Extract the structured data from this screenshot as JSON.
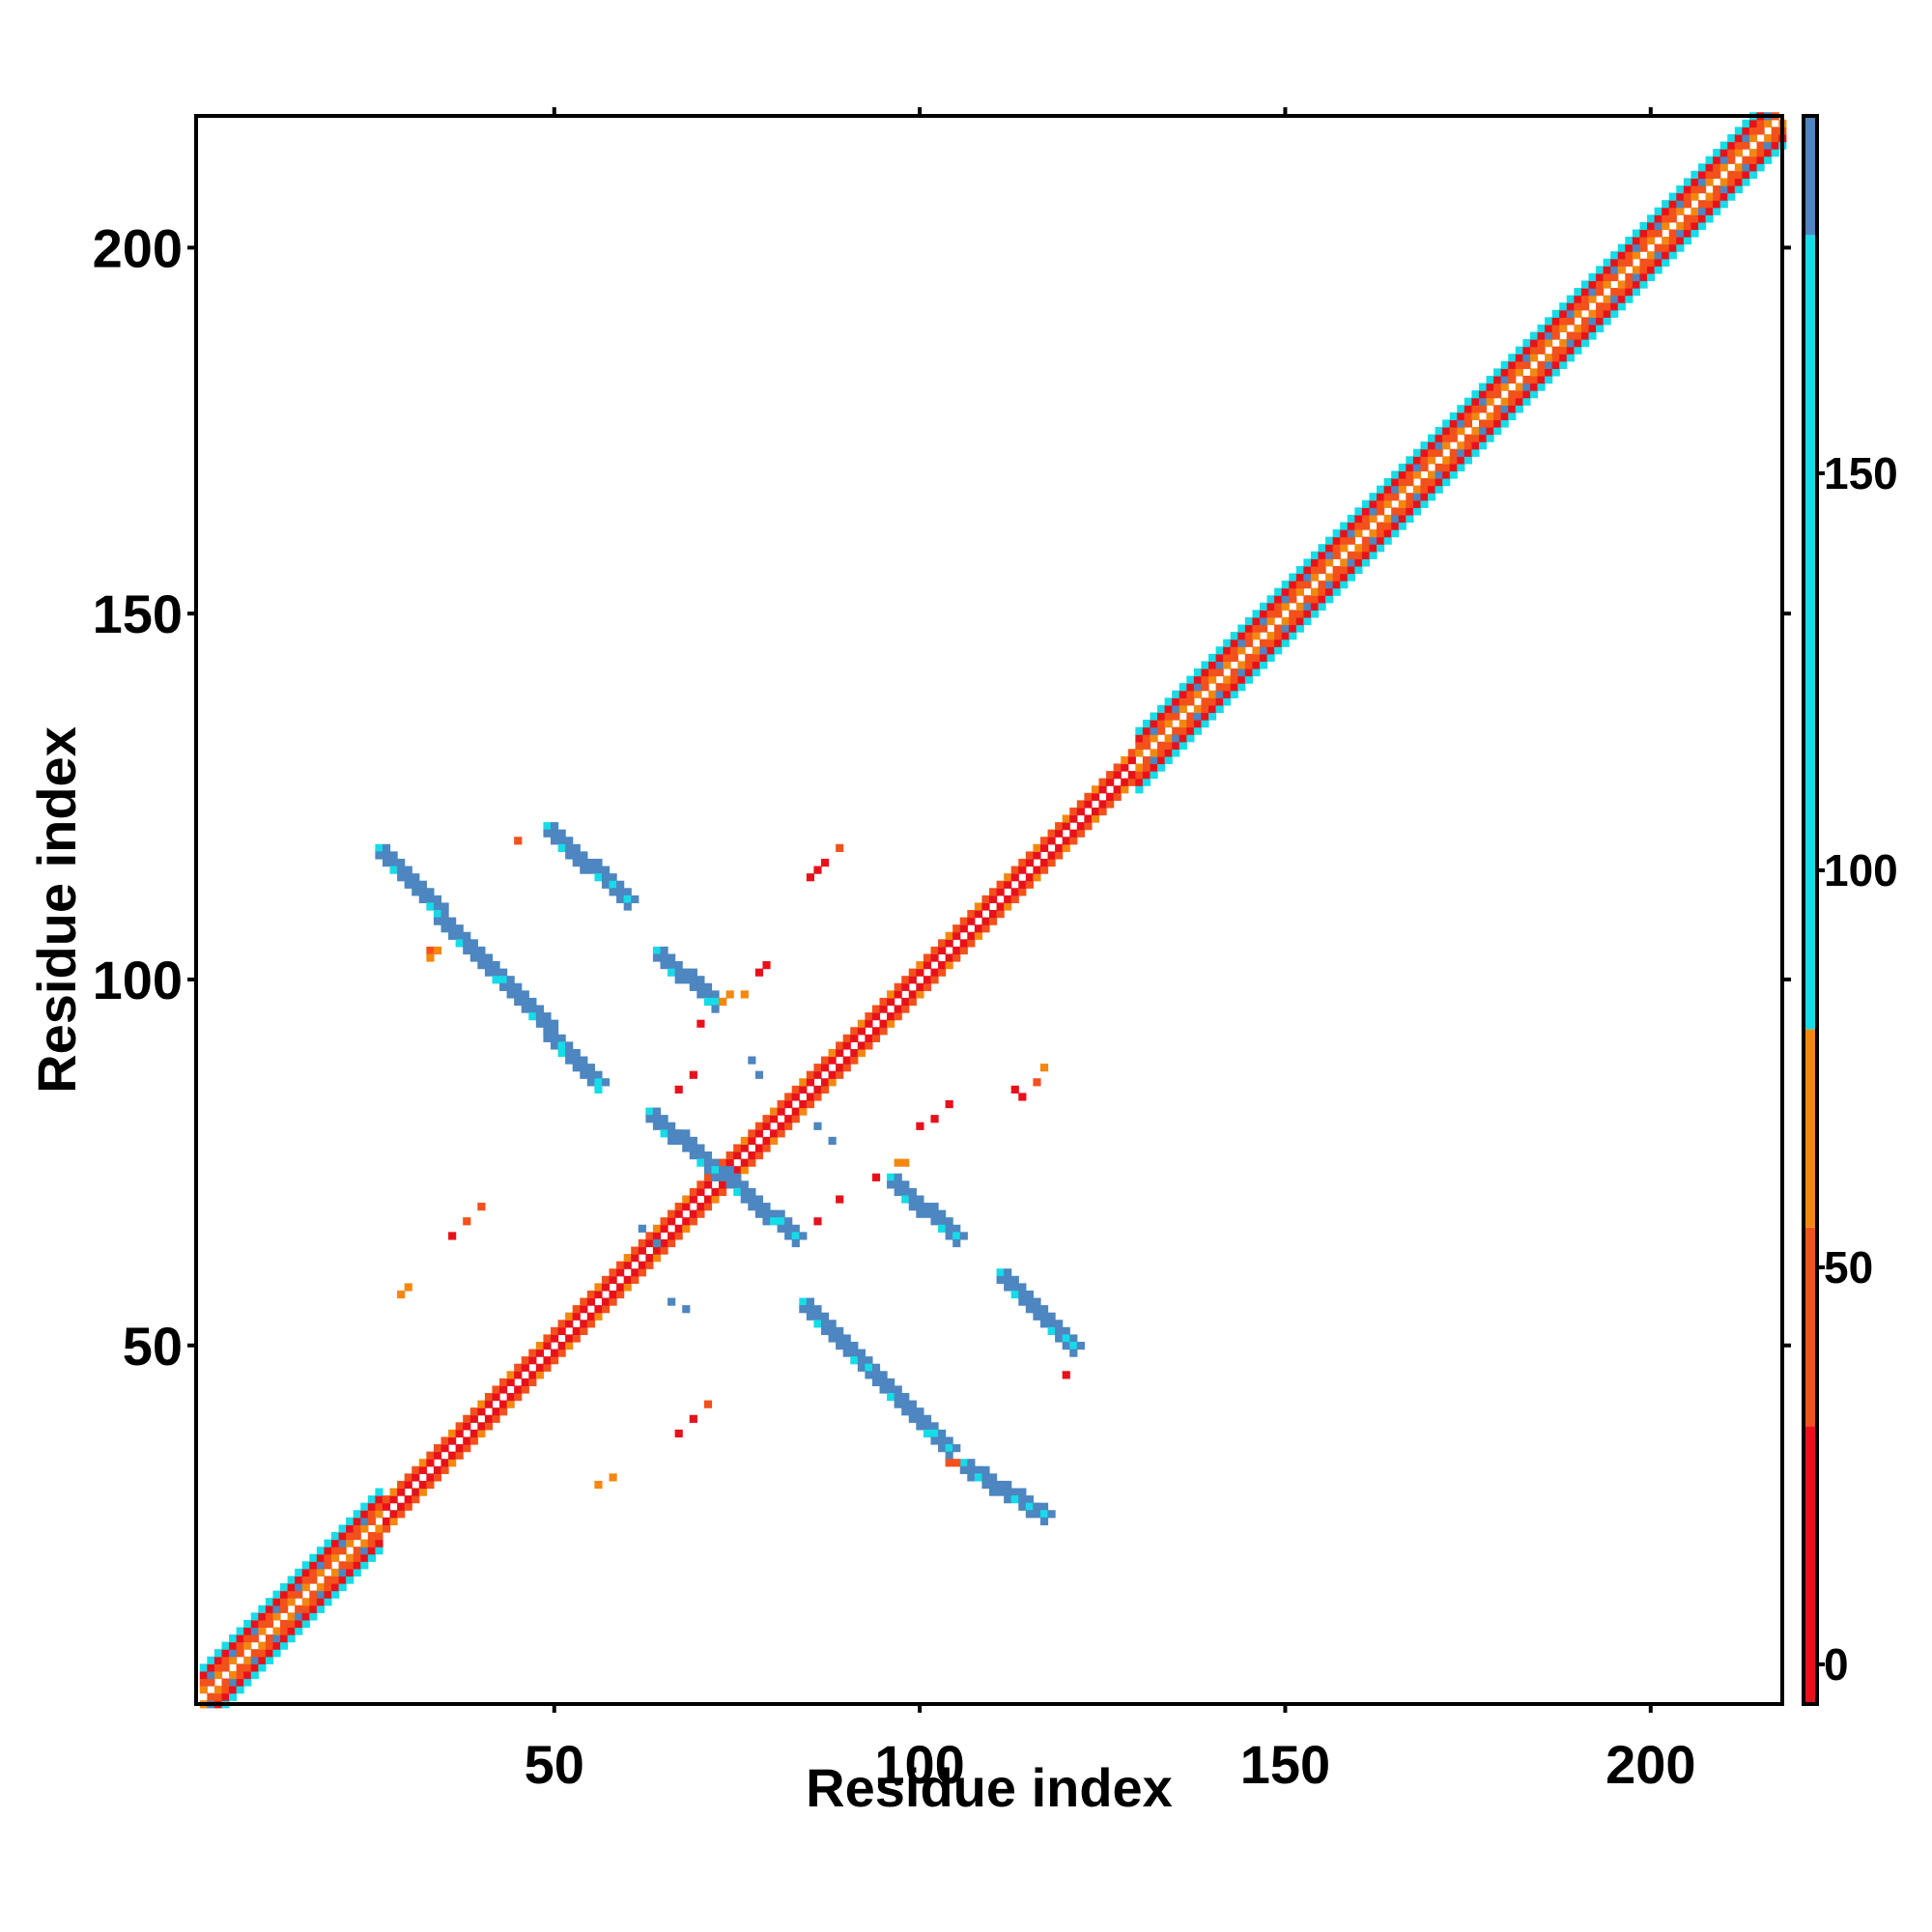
{
  "chart_data": {
    "type": "heatmap",
    "title": "",
    "xlabel": "Residue index",
    "ylabel": "Residue index",
    "xlim": [
      1,
      218
    ],
    "ylim": [
      1,
      218
    ],
    "x_ticks": [
      50,
      100,
      150,
      200
    ],
    "y_ticks": [
      50,
      100,
      150,
      200
    ],
    "colorbar": {
      "range": [
        -5,
        195
      ],
      "ticks": [
        0,
        50,
        100,
        150
      ],
      "bands": [
        {
          "from": -5,
          "to": 30,
          "color": "#e8111b"
        },
        {
          "from": 30,
          "to": 55,
          "color": "#f2511c"
        },
        {
          "from": 55,
          "to": 80,
          "color": "#f4880f"
        },
        {
          "from": 80,
          "to": 180,
          "color": "#15dce8"
        },
        {
          "from": 180,
          "to": 195,
          "color": "#4d86c0"
        }
      ]
    },
    "grid": false,
    "diagonal_band": {
      "start": 2,
      "end": 218,
      "halfwidth_helix": 4,
      "halfwidth_sheet": 2
    },
    "helix_segments": [
      [
        2,
        26
      ],
      [
        130,
        218
      ]
    ],
    "contact_strips": [
      {
        "x_start": 26,
        "y_start": 118,
        "x_end": 56,
        "y_end": 86,
        "color": "#4d86c0"
      },
      {
        "x_start": 49,
        "y_start": 121,
        "x_end": 60,
        "y_end": 111,
        "color": "#4d86c0"
      },
      {
        "x_start": 64,
        "y_start": 104,
        "x_end": 72,
        "y_end": 97,
        "color": "#4d86c0"
      },
      {
        "x_start": 63,
        "y_start": 82,
        "x_end": 83,
        "y_end": 65,
        "color": "#4d86c0"
      },
      {
        "x_start": 96,
        "y_start": 73,
        "x_end": 105,
        "y_end": 65,
        "color": "#4d86c0"
      },
      {
        "x_start": 84,
        "y_start": 56,
        "x_end": 104,
        "y_end": 36,
        "color": "#4d86c0"
      },
      {
        "x_start": 111,
        "y_start": 60,
        "x_end": 121,
        "y_end": 50,
        "color": "#4d86c0"
      },
      {
        "x_start": 106,
        "y_start": 34,
        "x_end": 117,
        "y_end": 27,
        "color": "#4d86c0"
      }
    ],
    "sparse_contacts": [
      {
        "x": 45,
        "y": 119,
        "color": "#f2511c"
      },
      {
        "x": 85,
        "y": 114,
        "color": "#e8111b"
      },
      {
        "x": 86,
        "y": 115,
        "color": "#e8111b"
      },
      {
        "x": 87,
        "y": 116,
        "color": "#e8111b"
      },
      {
        "x": 89,
        "y": 118,
        "color": "#f2511c"
      },
      {
        "x": 33,
        "y": 104,
        "color": "#f2511c"
      },
      {
        "x": 34,
        "y": 104,
        "color": "#f4880f"
      },
      {
        "x": 33,
        "y": 103,
        "color": "#f4880f"
      },
      {
        "x": 74,
        "y": 98,
        "color": "#f4880f"
      },
      {
        "x": 73,
        "y": 97,
        "color": "#f4880f"
      },
      {
        "x": 76,
        "y": 98,
        "color": "#f4880f"
      },
      {
        "x": 78,
        "y": 101,
        "color": "#e8111b"
      },
      {
        "x": 79,
        "y": 102,
        "color": "#e8111b"
      },
      {
        "x": 70,
        "y": 94,
        "color": "#e8111b"
      },
      {
        "x": 69,
        "y": 87,
        "color": "#e8111b"
      },
      {
        "x": 67,
        "y": 85,
        "color": "#e8111b"
      },
      {
        "x": 77,
        "y": 89,
        "color": "#4d86c0"
      },
      {
        "x": 78,
        "y": 87,
        "color": "#4d86c0"
      },
      {
        "x": 86,
        "y": 80,
        "color": "#4d86c0"
      },
      {
        "x": 88,
        "y": 78,
        "color": "#4d86c0"
      },
      {
        "x": 113,
        "y": 85,
        "color": "#e8111b"
      },
      {
        "x": 114,
        "y": 84,
        "color": "#e8111b"
      },
      {
        "x": 116,
        "y": 86,
        "color": "#f2511c"
      },
      {
        "x": 117,
        "y": 88,
        "color": "#f4880f"
      },
      {
        "x": 100,
        "y": 80,
        "color": "#e8111b"
      },
      {
        "x": 102,
        "y": 81,
        "color": "#e8111b"
      },
      {
        "x": 104,
        "y": 83,
        "color": "#e8111b"
      },
      {
        "x": 97,
        "y": 75,
        "color": "#f4880f"
      },
      {
        "x": 98,
        "y": 75,
        "color": "#f4880f"
      },
      {
        "x": 94,
        "y": 73,
        "color": "#e8111b"
      },
      {
        "x": 89,
        "y": 70,
        "color": "#e8111b"
      },
      {
        "x": 86,
        "y": 67,
        "color": "#e8111b"
      },
      {
        "x": 36,
        "y": 65,
        "color": "#e8111b"
      },
      {
        "x": 38,
        "y": 67,
        "color": "#f2511c"
      },
      {
        "x": 40,
        "y": 69,
        "color": "#f2511c"
      },
      {
        "x": 29,
        "y": 57,
        "color": "#f4880f"
      },
      {
        "x": 30,
        "y": 58,
        "color": "#f4880f"
      },
      {
        "x": 62,
        "y": 66,
        "color": "#4d86c0"
      },
      {
        "x": 64,
        "y": 64,
        "color": "#4d86c0"
      },
      {
        "x": 66,
        "y": 56,
        "color": "#4d86c0"
      },
      {
        "x": 68,
        "y": 55,
        "color": "#4d86c0"
      },
      {
        "x": 67,
        "y": 38,
        "color": "#e8111b"
      },
      {
        "x": 69,
        "y": 40,
        "color": "#e8111b"
      },
      {
        "x": 71,
        "y": 42,
        "color": "#f2511c"
      },
      {
        "x": 56,
        "y": 31,
        "color": "#f4880f"
      },
      {
        "x": 58,
        "y": 32,
        "color": "#f4880f"
      },
      {
        "x": 104,
        "y": 34,
        "color": "#f2511c"
      },
      {
        "x": 105,
        "y": 34,
        "color": "#f2511c"
      },
      {
        "x": 120,
        "y": 46,
        "color": "#e8111b"
      }
    ]
  }
}
